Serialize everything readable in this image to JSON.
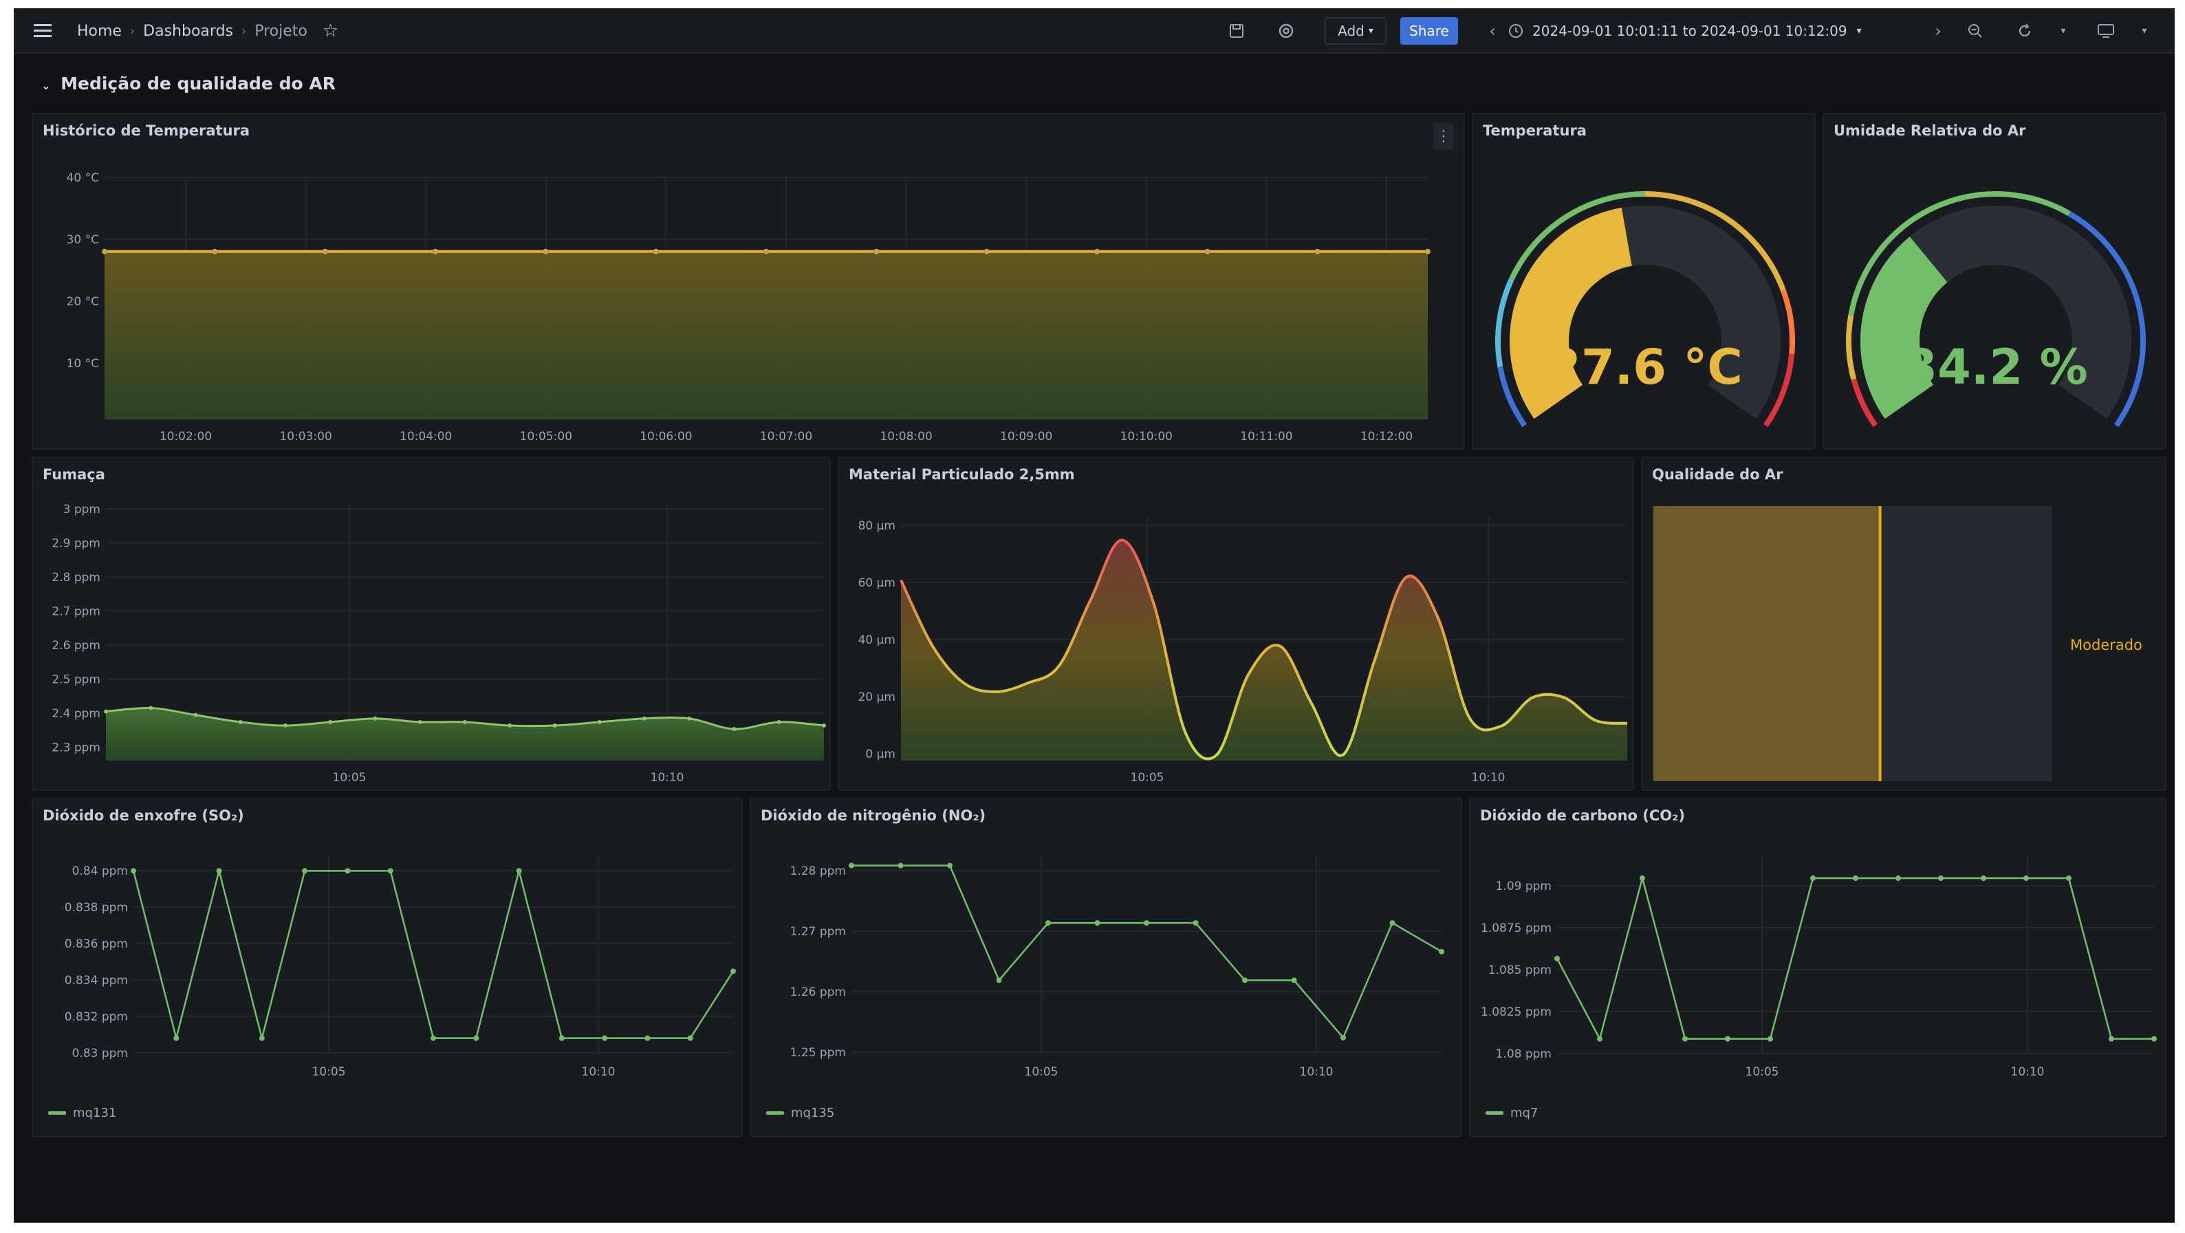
{
  "topbar": {
    "breadcrumb": [
      "Home",
      "Dashboards",
      "Projeto"
    ],
    "add_label": "Add",
    "share_label": "Share",
    "time_range": "2024-09-01 10:01:11 to 2024-09-01 10:12:09",
    "icons": [
      "menu-icon",
      "star-icon",
      "save-icon",
      "settings-icon",
      "chevron-left-icon",
      "clock-icon",
      "chevron-down-icon",
      "chevron-right-icon",
      "zoom-out-icon",
      "refresh-icon",
      "tv-icon"
    ]
  },
  "section": {
    "title": "Medição de qualidade do AR"
  },
  "panels": {
    "temp_history": {
      "title": "Histórico de Temperatura",
      "y_ticks": [
        "40 °C",
        "30 °C",
        "20 °C",
        "10 °C"
      ],
      "x_ticks": [
        "10:02:00",
        "10:03:00",
        "10:04:00",
        "10:05:00",
        "10:06:00",
        "10:07:00",
        "10:08:00",
        "10:09:00",
        "10:10:00",
        "10:11:00",
        "10:12:00"
      ]
    },
    "temperature": {
      "title": "Temperatura",
      "value": "27.6 °C",
      "color": "#fade2a"
    },
    "humidity": {
      "title": "Umidade Relativa do Ar",
      "value": "34.2 %",
      "color": "#73bf69"
    },
    "smoke": {
      "title": "Fumaça",
      "y_ticks": [
        "3 ppm",
        "2.9 ppm",
        "2.8 ppm",
        "2.7 ppm",
        "2.6 ppm",
        "2.5 ppm",
        "2.4 ppm",
        "2.3 ppm"
      ],
      "x_ticks": [
        "10:05",
        "10:10"
      ]
    },
    "pm25": {
      "title": "Material Particulado 2,5mm",
      "y_ticks": [
        "80 µm",
        "60 µm",
        "40 µm",
        "20 µm",
        "0 µm"
      ],
      "x_ticks": [
        "10:05",
        "10:10"
      ]
    },
    "air_quality": {
      "title": "Qualidade do Ar",
      "label": "Moderado",
      "color": "#e0b400"
    },
    "so2": {
      "title": "Dióxido de enxofre (SO₂)",
      "y_ticks": [
        "0.84 ppm",
        "0.838 ppm",
        "0.836 ppm",
        "0.834 ppm",
        "0.832 ppm",
        "0.83 ppm"
      ],
      "x_ticks": [
        "10:05",
        "10:10"
      ],
      "legend": "mq131"
    },
    "no2": {
      "title": "Dióxido de nitrogênio (NO₂)",
      "y_ticks": [
        "1.28 ppm",
        "1.27 ppm",
        "1.26 ppm",
        "1.25 ppm"
      ],
      "x_ticks": [
        "10:05",
        "10:10"
      ],
      "legend": "mq135"
    },
    "co2": {
      "title": "Dióxido de carbono (CO₂)",
      "y_ticks": [
        "1.09 ppm",
        "1.0875 ppm",
        "1.085 ppm",
        "1.0825 ppm",
        "1.08 ppm"
      ],
      "x_ticks": [
        "10:05",
        "10:10"
      ],
      "legend": "mq7"
    }
  },
  "chart_data": [
    {
      "type": "line",
      "title": "Histórico de Temperatura",
      "x": [
        "10:01:11",
        "10:02:00",
        "10:03:00",
        "10:04:00",
        "10:05:00",
        "10:06:00",
        "10:07:00",
        "10:08:00",
        "10:09:00",
        "10:10:00",
        "10:11:00",
        "10:12:00",
        "10:12:09"
      ],
      "series": [
        {
          "values": [
            27.6,
            27.6,
            27.6,
            27.6,
            27.6,
            27.6,
            27.6,
            27.6,
            27.6,
            27.6,
            27.6,
            27.6,
            27.6
          ]
        }
      ],
      "ylim": [
        0,
        40
      ],
      "color": "#fade2a"
    },
    {
      "type": "area",
      "title": "Fumaça",
      "series": [
        {
          "values": [
            2.41,
            2.42,
            2.4,
            2.38,
            2.37,
            2.38,
            2.39,
            2.38,
            2.38,
            2.37,
            2.37,
            2.38,
            2.39,
            2.39,
            2.36,
            2.38,
            2.37
          ]
        }
      ],
      "ylim": [
        2.27,
        3.0
      ],
      "color": "#73bf69"
    },
    {
      "type": "area",
      "title": "Material Particulado 2,5mm",
      "series": [
        {
          "values": [
            63,
            40,
            27,
            24,
            27,
            33,
            56,
            77,
            55,
            10,
            2,
            30,
            40,
            20,
            2,
            35,
            64,
            50,
            15,
            12,
            22,
            22,
            14,
            13
          ]
        }
      ],
      "ylim": [
        0,
        85
      ]
    },
    {
      "type": "line",
      "title": "Dióxido de enxofre (SO₂)",
      "series": [
        {
          "name": "mq131",
          "values": [
            0.84,
            0.83,
            0.84,
            0.83,
            0.84,
            0.84,
            0.84,
            0.83,
            0.83,
            0.84,
            0.83,
            0.83,
            0.83,
            0.83,
            0.834
          ]
        }
      ],
      "ylim": [
        0.829,
        0.841
      ],
      "color": "#73bf69"
    },
    {
      "type": "line",
      "title": "Dióxido de nitrogênio (NO₂)",
      "series": [
        {
          "name": "mq135",
          "values": [
            1.28,
            1.28,
            1.28,
            1.26,
            1.27,
            1.27,
            1.27,
            1.27,
            1.26,
            1.26,
            1.25,
            1.27,
            1.265
          ]
        }
      ],
      "ylim": [
        1.247,
        1.282
      ],
      "color": "#73bf69"
    },
    {
      "type": "line",
      "title": "Dióxido de carbono (CO₂)",
      "series": [
        {
          "name": "mq7",
          "values": [
            1.085,
            1.08,
            1.09,
            1.08,
            1.08,
            1.08,
            1.09,
            1.09,
            1.09,
            1.09,
            1.09,
            1.09,
            1.09,
            1.08,
            1.08
          ]
        }
      ],
      "ylim": [
        1.079,
        1.0915
      ],
      "color": "#73bf69"
    },
    {
      "type": "bar",
      "title": "Qualidade do Ar",
      "categories": [
        "Moderado"
      ],
      "values": [
        0.57
      ]
    }
  ]
}
